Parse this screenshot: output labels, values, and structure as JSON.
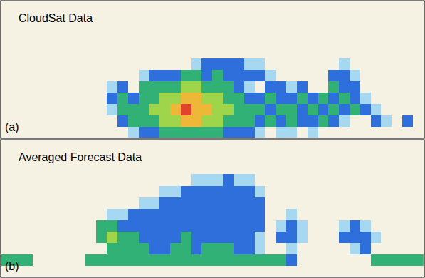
{
  "chart_data": [
    {
      "type": "heatmap",
      "title": "CloudSat Data",
      "annotations": [
        "(a)"
      ],
      "tick_labels": false,
      "zlim": [
        1,
        6
      ],
      "cells": [
        [
          null,
          null,
          null,
          null,
          null,
          null,
          null,
          null,
          null,
          null,
          null,
          null,
          null,
          null,
          null,
          null,
          null,
          null,
          null,
          null,
          null,
          null,
          null,
          null,
          null,
          null,
          null,
          null,
          null,
          null,
          null,
          null,
          null,
          null,
          null,
          null,
          null,
          null,
          null,
          null
        ],
        [
          null,
          null,
          null,
          null,
          null,
          null,
          null,
          null,
          null,
          null,
          null,
          null,
          null,
          null,
          null,
          null,
          null,
          null,
          null,
          null,
          null,
          null,
          null,
          null,
          null,
          null,
          null,
          null,
          null,
          null,
          null,
          null,
          null,
          null,
          null,
          null,
          null,
          null,
          null,
          null
        ],
        [
          null,
          null,
          null,
          null,
          null,
          null,
          null,
          null,
          null,
          null,
          null,
          null,
          null,
          null,
          null,
          null,
          null,
          null,
          null,
          null,
          null,
          null,
          null,
          null,
          null,
          null,
          null,
          null,
          null,
          null,
          null,
          null,
          null,
          null,
          null,
          null,
          null,
          null,
          null,
          null
        ],
        [
          null,
          null,
          null,
          null,
          null,
          null,
          null,
          null,
          null,
          null,
          null,
          null,
          null,
          null,
          null,
          null,
          null,
          null,
          null,
          null,
          null,
          null,
          null,
          null,
          null,
          null,
          null,
          null,
          null,
          null,
          null,
          null,
          null,
          null,
          null,
          null,
          null,
          null,
          null,
          null
        ],
        [
          null,
          null,
          null,
          null,
          null,
          null,
          null,
          null,
          null,
          null,
          null,
          null,
          null,
          null,
          null,
          null,
          null,
          null,
          null,
          null,
          null,
          null,
          null,
          null,
          null,
          null,
          null,
          null,
          null,
          null,
          null,
          null,
          null,
          null,
          null,
          null,
          null,
          null,
          null,
          null
        ],
        [
          null,
          null,
          null,
          null,
          null,
          null,
          null,
          null,
          null,
          null,
          null,
          null,
          null,
          null,
          null,
          null,
          null,
          null,
          1,
          2,
          2,
          2,
          2,
          1,
          1,
          null,
          null,
          null,
          null,
          null,
          null,
          null,
          1,
          null,
          null,
          null,
          null,
          null,
          null,
          null
        ],
        [
          null,
          null,
          null,
          null,
          null,
          null,
          null,
          null,
          null,
          null,
          null,
          null,
          null,
          1,
          2,
          2,
          2,
          3,
          3,
          2,
          3,
          2,
          2,
          2,
          2,
          1,
          null,
          null,
          null,
          null,
          null,
          2,
          2,
          1,
          null,
          null,
          null,
          null,
          null,
          null
        ],
        [
          null,
          null,
          null,
          null,
          null,
          null,
          null,
          null,
          null,
          null,
          1,
          2,
          null,
          3,
          3,
          3,
          3,
          4,
          4,
          3,
          3,
          3,
          2,
          1,
          null,
          2,
          2,
          1,
          2,
          null,
          null,
          3,
          2,
          2,
          null,
          null,
          null,
          null,
          null,
          null
        ],
        [
          null,
          null,
          null,
          null,
          null,
          null,
          null,
          null,
          null,
          null,
          2,
          3,
          2,
          3,
          3,
          4,
          4,
          5,
          5,
          4,
          4,
          3,
          3,
          2,
          2,
          3,
          2,
          2,
          3,
          2,
          3,
          2,
          3,
          2,
          1,
          null,
          null,
          null,
          null,
          null
        ],
        [
          null,
          null,
          null,
          null,
          null,
          null,
          null,
          null,
          null,
          null,
          1,
          3,
          3,
          3,
          4,
          4,
          5,
          6,
          5,
          5,
          4,
          4,
          3,
          3,
          3,
          2,
          3,
          3,
          2,
          3,
          2,
          3,
          2,
          3,
          2,
          1,
          null,
          null,
          null,
          null
        ],
        [
          null,
          null,
          null,
          null,
          null,
          null,
          null,
          null,
          null,
          null,
          null,
          2,
          3,
          3,
          3,
          4,
          4,
          5,
          5,
          4,
          4,
          3,
          3,
          3,
          2,
          3,
          2,
          3,
          2,
          2,
          3,
          2,
          1,
          null,
          null,
          2,
          1,
          null,
          2,
          null
        ],
        [
          null,
          null,
          null,
          null,
          null,
          null,
          null,
          null,
          null,
          null,
          null,
          null,
          1,
          2,
          2,
          3,
          3,
          3,
          3,
          3,
          3,
          2,
          2,
          2,
          1,
          null,
          1,
          1,
          null,
          1,
          null,
          null,
          null,
          null,
          null,
          null,
          null,
          null,
          null,
          null
        ]
      ]
    },
    {
      "type": "heatmap",
      "title": "Averaged Forecast Data",
      "annotations": [
        "(b)"
      ],
      "tick_labels": false,
      "zlim": [
        1,
        6
      ],
      "cells": [
        [
          null,
          null,
          null,
          null,
          null,
          null,
          null,
          null,
          null,
          null,
          null,
          null,
          null,
          null,
          null,
          null,
          null,
          null,
          null,
          null,
          null,
          null,
          null,
          null,
          null,
          null,
          null,
          null,
          null,
          null,
          null,
          null,
          null,
          null,
          null,
          null,
          null,
          null,
          null,
          null
        ],
        [
          null,
          null,
          null,
          null,
          null,
          null,
          null,
          null,
          null,
          null,
          null,
          null,
          null,
          null,
          null,
          null,
          null,
          null,
          null,
          null,
          null,
          null,
          null,
          null,
          null,
          null,
          null,
          null,
          null,
          null,
          null,
          null,
          null,
          null,
          null,
          null,
          null,
          null,
          null,
          null
        ],
        [
          null,
          null,
          null,
          null,
          null,
          null,
          null,
          null,
          null,
          null,
          null,
          null,
          null,
          null,
          null,
          null,
          null,
          null,
          null,
          null,
          null,
          null,
          null,
          null,
          null,
          null,
          null,
          null,
          null,
          null,
          null,
          null,
          null,
          null,
          null,
          null,
          null,
          null,
          null,
          null
        ],
        [
          null,
          null,
          null,
          null,
          null,
          null,
          null,
          null,
          null,
          null,
          null,
          null,
          null,
          null,
          null,
          null,
          null,
          null,
          1,
          1,
          1,
          2,
          1,
          1,
          null,
          null,
          null,
          null,
          null,
          null,
          null,
          null,
          null,
          null,
          null,
          null,
          null,
          null,
          null,
          null
        ],
        [
          null,
          null,
          null,
          null,
          null,
          null,
          null,
          null,
          null,
          null,
          null,
          null,
          null,
          null,
          null,
          1,
          1,
          2,
          2,
          2,
          2,
          2,
          2,
          2,
          1,
          null,
          null,
          null,
          null,
          null,
          null,
          null,
          null,
          null,
          null,
          null,
          null,
          null,
          null,
          null
        ],
        [
          null,
          null,
          null,
          null,
          null,
          null,
          null,
          null,
          null,
          null,
          null,
          null,
          null,
          1,
          1,
          2,
          2,
          2,
          2,
          2,
          2,
          2,
          2,
          2,
          2,
          null,
          null,
          null,
          null,
          null,
          null,
          null,
          null,
          null,
          null,
          null,
          null,
          null,
          null,
          null
        ],
        [
          null,
          null,
          null,
          null,
          null,
          null,
          null,
          null,
          null,
          null,
          1,
          1,
          2,
          2,
          2,
          2,
          2,
          2,
          2,
          2,
          2,
          2,
          2,
          2,
          2,
          null,
          null,
          1,
          null,
          null,
          null,
          null,
          null,
          null,
          null,
          null,
          null,
          null,
          null,
          null
        ],
        [
          null,
          null,
          null,
          null,
          null,
          null,
          null,
          null,
          null,
          3,
          3,
          2,
          2,
          2,
          2,
          2,
          2,
          2,
          2,
          2,
          2,
          2,
          2,
          2,
          2,
          null,
          1,
          2,
          1,
          null,
          null,
          null,
          1,
          2,
          1,
          null,
          null,
          null,
          null,
          null
        ],
        [
          null,
          null,
          null,
          null,
          null,
          null,
          null,
          null,
          null,
          3,
          4,
          3,
          3,
          2,
          2,
          2,
          2,
          3,
          2,
          2,
          2,
          2,
          2,
          2,
          1,
          null,
          2,
          2,
          1,
          null,
          null,
          null,
          2,
          2,
          2,
          1,
          null,
          null,
          null,
          null
        ],
        [
          null,
          null,
          null,
          null,
          null,
          null,
          null,
          null,
          null,
          null,
          3,
          3,
          3,
          3,
          2,
          2,
          3,
          3,
          2,
          3,
          3,
          3,
          2,
          2,
          1,
          null,
          null,
          1,
          null,
          null,
          null,
          null,
          null,
          1,
          2,
          null,
          null,
          null,
          null,
          null
        ],
        [
          3,
          3,
          3,
          null,
          null,
          null,
          null,
          null,
          3,
          3,
          3,
          3,
          3,
          3,
          3,
          3,
          3,
          3,
          3,
          3,
          3,
          3,
          3,
          3,
          3,
          3,
          3,
          2,
          null,
          null,
          null,
          null,
          null,
          null,
          null,
          3,
          3,
          3,
          3,
          3
        ],
        [
          null,
          null,
          null,
          null,
          null,
          null,
          null,
          null,
          null,
          null,
          null,
          null,
          null,
          null,
          null,
          null,
          null,
          null,
          null,
          null,
          null,
          null,
          null,
          null,
          null,
          null,
          null,
          null,
          null,
          null,
          null,
          null,
          null,
          null,
          null,
          null,
          null,
          null,
          null,
          null
        ]
      ]
    }
  ]
}
